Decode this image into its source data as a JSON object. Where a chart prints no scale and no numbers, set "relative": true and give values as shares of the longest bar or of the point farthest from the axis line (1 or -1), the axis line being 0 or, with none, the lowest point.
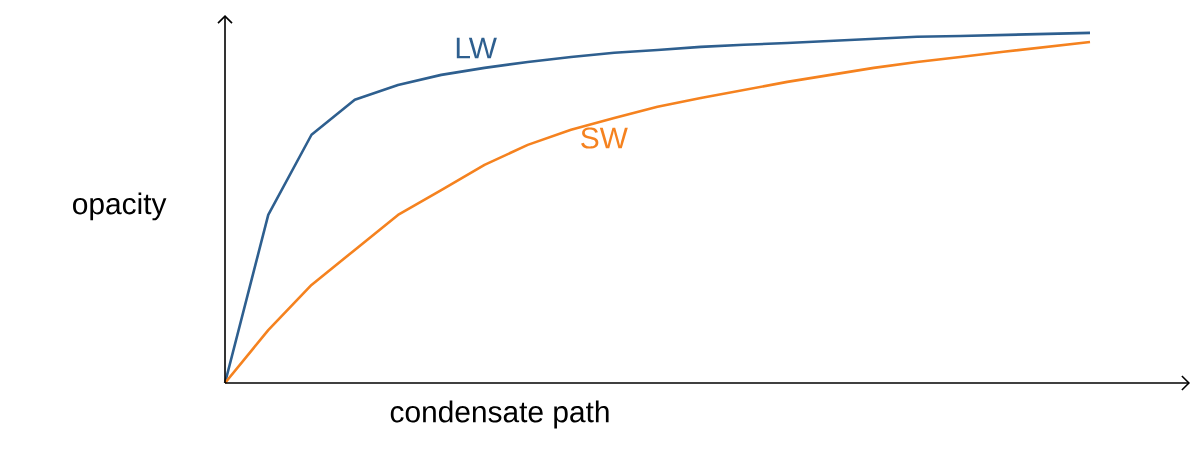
{
  "chart_data": {
    "type": "line",
    "relative": true,
    "xlabel": "condensate path",
    "ylabel": "opacity",
    "line_style": "solid",
    "categories": [
      null,
      null,
      null,
      null,
      null,
      null,
      null,
      null,
      null,
      null,
      null,
      null,
      null,
      null,
      null,
      null,
      null,
      null,
      null,
      null,
      null
    ],
    "series": [
      {
        "name": "LW",
        "color": "#2e5f8f",
        "values": [
          0,
          0.48,
          0.709,
          0.809,
          0.851,
          0.88,
          0.9,
          0.917,
          0.931,
          0.943,
          0.951,
          0.96,
          0.966,
          0.971,
          0.977,
          0.983,
          0.989,
          0.991,
          0.994,
          0.997,
          1
        ]
      },
      {
        "name": "SW",
        "color": "#f5821f",
        "values": [
          0,
          0.151,
          0.28,
          0.38,
          0.48,
          0.551,
          0.623,
          0.68,
          0.723,
          0.757,
          0.789,
          0.814,
          0.837,
          0.86,
          0.88,
          0.9,
          0.917,
          0.931,
          0.946,
          0.96,
          0.974
        ]
      }
    ]
  }
}
